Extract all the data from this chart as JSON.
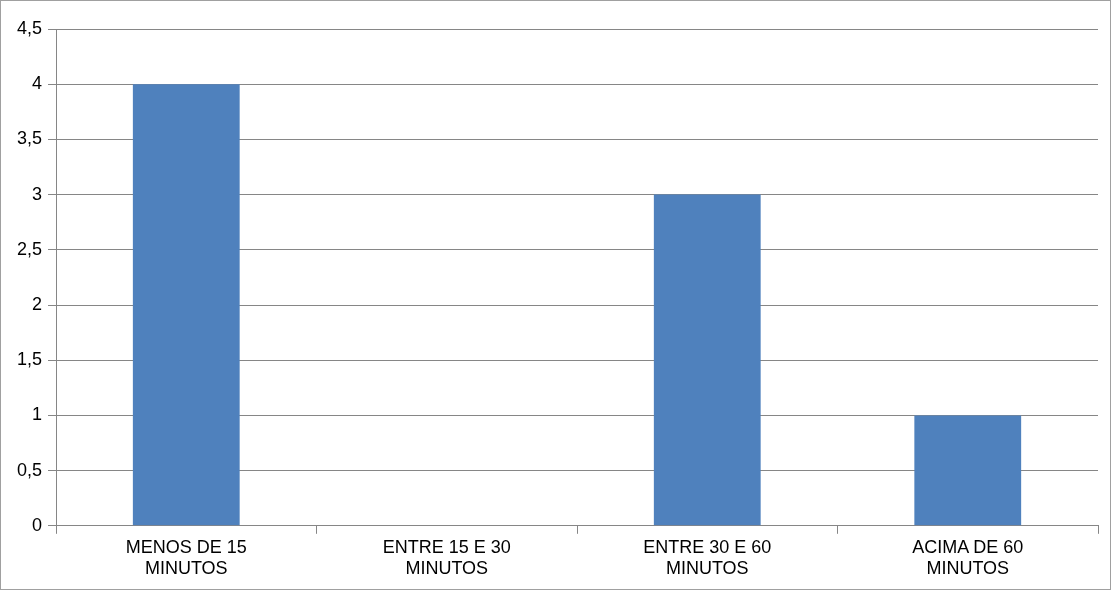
{
  "chart_data": {
    "type": "bar",
    "categories": [
      "MENOS DE 15 MINUTOS",
      "ENTRE 15 E 30 MINUTOS",
      "ENTRE 30 E 60 MINUTOS",
      "ACIMA DE 60 MINUTOS"
    ],
    "values": [
      4,
      0,
      3,
      1
    ],
    "color": "#4f81bd",
    "ylim": [
      0,
      4.5
    ],
    "yticks": [
      0,
      {
        "value": 0.5,
        "label": "0,5"
      },
      1,
      {
        "value": 1.5,
        "label": "1,5"
      },
      2,
      {
        "value": 2.5,
        "label": "2,5"
      },
      3,
      {
        "value": 3.5,
        "label": "3,5"
      },
      4,
      {
        "value": 4.5,
        "label": "4,5"
      }
    ],
    "grid": "y",
    "legend": false
  }
}
